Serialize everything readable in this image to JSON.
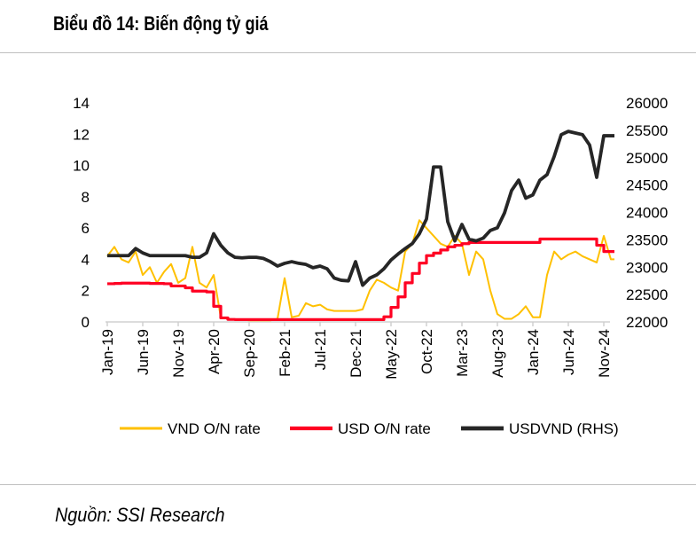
{
  "title": "Biểu đồ 14: Biến động tỷ giá",
  "source": "Nguồn: SSI Research",
  "chart_data": {
    "type": "line",
    "title": "Biểu đồ 14: Biến động tỷ giá",
    "x_tick_labels": [
      "Jan-19",
      "Jun-19",
      "Nov-19",
      "Apr-20",
      "Sep-20",
      "Feb-21",
      "Jul-21",
      "Dec-21",
      "May-22",
      "Oct-22",
      "Mar-23",
      "Aug-23",
      "Jan-24",
      "Jun-24",
      "Nov-24"
    ],
    "x_start": "Jan-19",
    "x_frequency": "monthly",
    "y_left": {
      "range": [
        0,
        14
      ],
      "ticks": [
        0,
        2,
        4,
        6,
        8,
        10,
        12,
        14
      ]
    },
    "y_right": {
      "range": [
        22000,
        26000
      ],
      "ticks": [
        22000,
        22500,
        23000,
        23500,
        24000,
        24500,
        25000,
        25500,
        26000
      ]
    },
    "grid": false,
    "legend_position": "bottom",
    "series": [
      {
        "name": "VND O/N rate",
        "axis": "left",
        "color": "#FFC000",
        "values": [
          4.2,
          4.8,
          4.0,
          3.8,
          4.5,
          3.0,
          3.5,
          2.5,
          3.2,
          3.7,
          2.5,
          2.8,
          4.8,
          2.5,
          2.2,
          3.0,
          0.3,
          0.2,
          0.15,
          0.15,
          0.1,
          0.1,
          0.1,
          0.1,
          0.2,
          2.8,
          0.3,
          0.4,
          1.2,
          1.0,
          1.1,
          0.8,
          0.7,
          0.7,
          0.7,
          0.7,
          0.8,
          2.0,
          2.7,
          2.5,
          2.2,
          2.0,
          4.5,
          5.0,
          6.5,
          6.0,
          5.5,
          5.0,
          4.8,
          5.5,
          5.0,
          3.0,
          4.5,
          4.0,
          2.0,
          0.5,
          0.2,
          0.2,
          0.5,
          1.0,
          0.3,
          0.3,
          3.0,
          4.5,
          4.0,
          4.3,
          4.5,
          4.2,
          4.0,
          3.8,
          5.5,
          4.0
        ]
      },
      {
        "name": "USD O/N rate",
        "axis": "left",
        "color": "#FF0022",
        "values": [
          2.44,
          2.46,
          2.48,
          2.48,
          2.48,
          2.48,
          2.46,
          2.46,
          2.44,
          2.3,
          2.3,
          2.18,
          1.97,
          1.97,
          1.92,
          1.0,
          0.26,
          0.16,
          0.15,
          0.15,
          0.15,
          0.15,
          0.15,
          0.15,
          0.15,
          0.15,
          0.15,
          0.15,
          0.15,
          0.15,
          0.15,
          0.15,
          0.15,
          0.15,
          0.15,
          0.15,
          0.15,
          0.15,
          0.15,
          0.33,
          0.93,
          1.6,
          2.5,
          3.1,
          3.76,
          4.24,
          4.4,
          4.6,
          4.8,
          4.9,
          5.0,
          5.08,
          5.08,
          5.08,
          5.08,
          5.08,
          5.08,
          5.08,
          5.08,
          5.08,
          5.08,
          5.3,
          5.3,
          5.3,
          5.3,
          5.3,
          5.3,
          5.3,
          5.3,
          4.9,
          4.5,
          4.5
        ]
      },
      {
        "name": "USDVND (RHS)",
        "axis": "right",
        "color": "#262626",
        "values": [
          23210,
          23210,
          23210,
          23210,
          23340,
          23260,
          23210,
          23210,
          23210,
          23210,
          23210,
          23210,
          23180,
          23180,
          23260,
          23610,
          23400,
          23260,
          23180,
          23170,
          23180,
          23180,
          23160,
          23100,
          23020,
          23070,
          23100,
          23070,
          23050,
          22990,
          23020,
          22970,
          22800,
          22760,
          22750,
          23100,
          22670,
          22800,
          22860,
          22970,
          23130,
          23240,
          23340,
          23430,
          23610,
          23880,
          24830,
          24830,
          23830,
          23480,
          23780,
          23510,
          23480,
          23530,
          23670,
          23720,
          23990,
          24400,
          24590,
          24260,
          24320,
          24590,
          24690,
          25020,
          25420,
          25480,
          25450,
          25420,
          25230,
          24640,
          25400,
          25400
        ]
      }
    ]
  }
}
